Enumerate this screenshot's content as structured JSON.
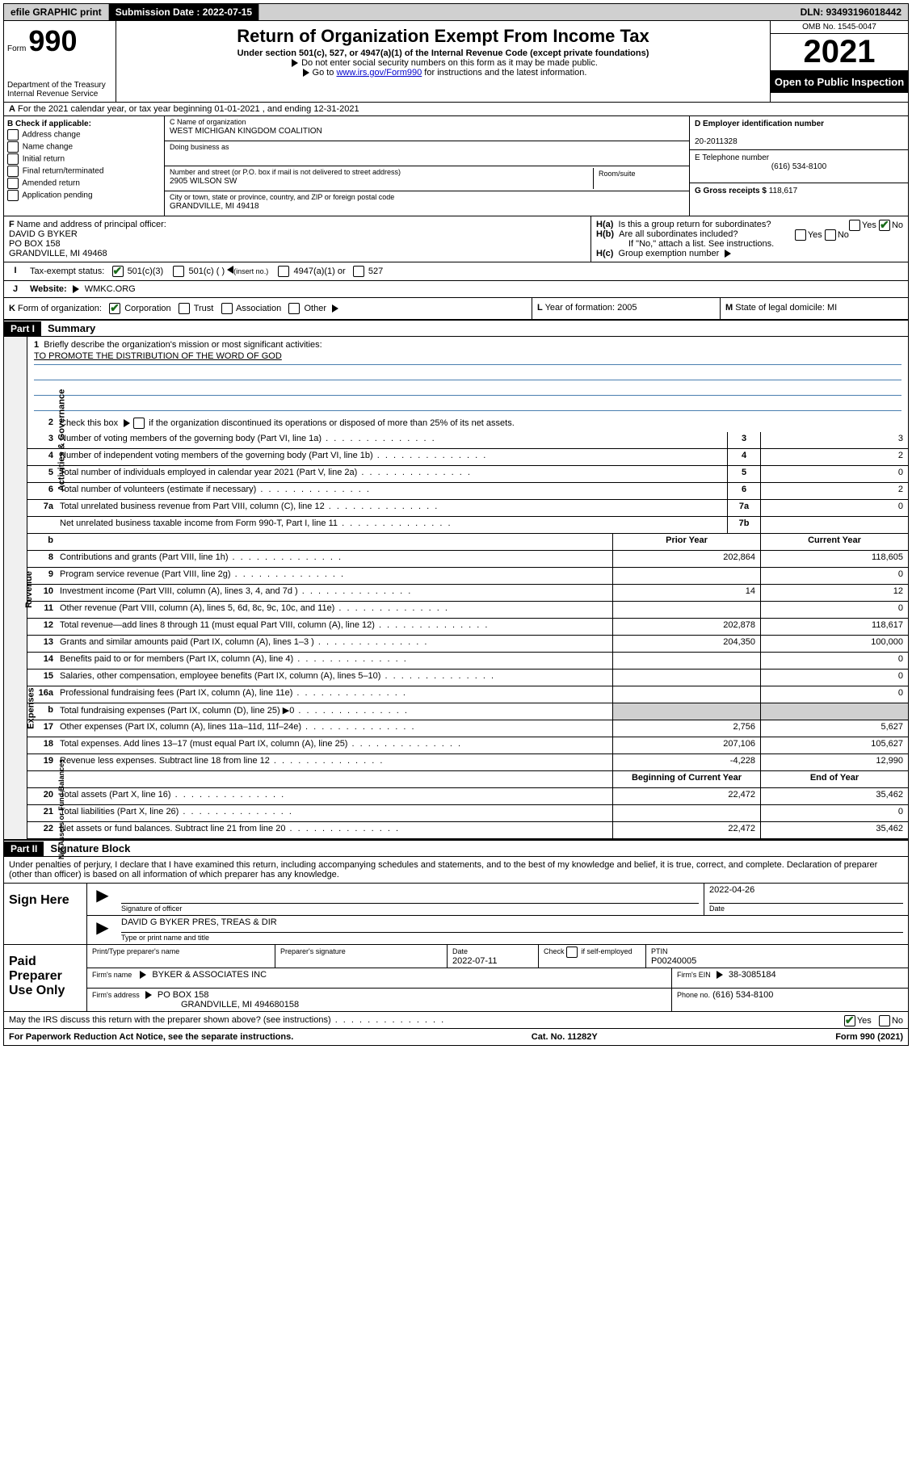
{
  "topbar": {
    "efile": "efile GRAPHIC print",
    "submission_label": "Submission Date : 2022-07-15",
    "dln": "DLN: 93493196018442"
  },
  "header": {
    "form_word": "Form",
    "form_num": "990",
    "dept": "Department of the Treasury",
    "irs": "Internal Revenue Service",
    "title": "Return of Organization Exempt From Income Tax",
    "sub": "Under section 501(c), 527, or 4947(a)(1) of the Internal Revenue Code (except private foundations)",
    "note1": "Do not enter social security numbers on this form as it may be made public.",
    "note2_pre": "Go to ",
    "note2_link": "www.irs.gov/Form990",
    "note2_post": " for instructions and the latest information.",
    "omb": "OMB No. 1545-0047",
    "year": "2021",
    "open": "Open to Public Inspection"
  },
  "section_a": {
    "label": "A",
    "text": "For the 2021 calendar year, or tax year beginning 01-01-2021",
    "ending": ", and ending 12-31-2021"
  },
  "section_b": {
    "label": "B Check if applicable:",
    "items": [
      "Address change",
      "Name change",
      "Initial return",
      "Final return/terminated",
      "Amended return",
      "Application pending"
    ]
  },
  "section_c": {
    "name_label": "C Name of organization",
    "name": "WEST MICHIGAN KINGDOM COALITION",
    "dba_label": "Doing business as",
    "dba": "",
    "street_label": "Number and street (or P.O. box if mail is not delivered to street address)",
    "street": "2905 WILSON SW",
    "room_label": "Room/suite",
    "city_label": "City or town, state or province, country, and ZIP or foreign postal code",
    "city": "GRANDVILLE, MI  49418"
  },
  "section_d": {
    "ein_label": "D Employer identification number",
    "ein": "20-2011328",
    "tel_label": "E Telephone number",
    "tel": "(616) 534-8100",
    "gross_label": "G Gross receipts $",
    "gross": "118,617"
  },
  "section_f": {
    "label": "F",
    "text": "Name and address of principal officer:",
    "name": "DAVID G BYKER",
    "addr1": "PO BOX 158",
    "addr2": "GRANDVILLE, MI  49468"
  },
  "section_h": {
    "a_label": "H(a)",
    "a_text": "Is this a group return for subordinates?",
    "b_label": "H(b)",
    "b_text": "Are all subordinates included?",
    "b_note": "If \"No,\" attach a list. See instructions.",
    "c_label": "H(c)",
    "c_text": "Group exemption number",
    "yes": "Yes",
    "no": "No"
  },
  "section_i": {
    "label": "I",
    "text": "Tax-exempt status:",
    "opt1": "501(c)(3)",
    "opt2": "501(c) (   )",
    "opt2_hint": "(insert no.)",
    "opt3": "4947(a)(1) or",
    "opt4": "527"
  },
  "section_j": {
    "label": "J",
    "text": "Website:",
    "value": "WMKC.ORG"
  },
  "section_k": {
    "label": "K",
    "text": "Form of organization:",
    "corp": "Corporation",
    "trust": "Trust",
    "assoc": "Association",
    "other": "Other"
  },
  "section_l": {
    "label": "L",
    "text": "Year of formation: 2005"
  },
  "section_m": {
    "label": "M",
    "text": "State of legal domicile: MI"
  },
  "part1": {
    "header": "Part I",
    "title": "Summary",
    "line1_label": "1",
    "line1_text": "Briefly describe the organization's mission or most significant activities:",
    "mission": "TO PROMOTE THE DISTRIBUTION OF THE WORD OF GOD",
    "line2_label": "2",
    "line2_text": "Check this box",
    "line2_post": "if the organization discontinued its operations or disposed of more than 25% of its net assets."
  },
  "sides": {
    "gov": "Activities & Governance",
    "rev": "Revenue",
    "exp": "Expenses",
    "net": "Net Assets or Fund Balances"
  },
  "gov_lines": [
    {
      "n": "3",
      "d": "Number of voting members of the governing body (Part VI, line 1a)",
      "box": "3",
      "v": "3"
    },
    {
      "n": "4",
      "d": "Number of independent voting members of the governing body (Part VI, line 1b)",
      "box": "4",
      "v": "2"
    },
    {
      "n": "5",
      "d": "Total number of individuals employed in calendar year 2021 (Part V, line 2a)",
      "box": "5",
      "v": "0"
    },
    {
      "n": "6",
      "d": "Total number of volunteers (estimate if necessary)",
      "box": "6",
      "v": "2"
    },
    {
      "n": "7a",
      "d": "Total unrelated business revenue from Part VIII, column (C), line 12",
      "box": "7a",
      "v": "0"
    },
    {
      "n": "",
      "d": "Net unrelated business taxable income from Form 990-T, Part I, line 11",
      "box": "7b",
      "v": ""
    }
  ],
  "two_col_head": {
    "prior": "Prior Year",
    "curr": "Current Year"
  },
  "rev_lines": [
    {
      "n": "8",
      "d": "Contributions and grants (Part VIII, line 1h)",
      "p": "202,864",
      "c": "118,605"
    },
    {
      "n": "9",
      "d": "Program service revenue (Part VIII, line 2g)",
      "p": "",
      "c": "0"
    },
    {
      "n": "10",
      "d": "Investment income (Part VIII, column (A), lines 3, 4, and 7d )",
      "p": "14",
      "c": "12"
    },
    {
      "n": "11",
      "d": "Other revenue (Part VIII, column (A), lines 5, 6d, 8c, 9c, 10c, and 11e)",
      "p": "",
      "c": "0"
    },
    {
      "n": "12",
      "d": "Total revenue—add lines 8 through 11 (must equal Part VIII, column (A), line 12)",
      "p": "202,878",
      "c": "118,617"
    }
  ],
  "exp_lines": [
    {
      "n": "13",
      "d": "Grants and similar amounts paid (Part IX, column (A), lines 1–3 )",
      "p": "204,350",
      "c": "100,000"
    },
    {
      "n": "14",
      "d": "Benefits paid to or for members (Part IX, column (A), line 4)",
      "p": "",
      "c": "0"
    },
    {
      "n": "15",
      "d": "Salaries, other compensation, employee benefits (Part IX, column (A), lines 5–10)",
      "p": "",
      "c": "0"
    },
    {
      "n": "16a",
      "d": "Professional fundraising fees (Part IX, column (A), line 11e)",
      "p": "",
      "c": "0"
    },
    {
      "n": "b",
      "d": "Total fundraising expenses (Part IX, column (D), line 25) ▶0",
      "p": "grey",
      "c": "grey"
    },
    {
      "n": "17",
      "d": "Other expenses (Part IX, column (A), lines 11a–11d, 11f–24e)",
      "p": "2,756",
      "c": "5,627"
    },
    {
      "n": "18",
      "d": "Total expenses. Add lines 13–17 (must equal Part IX, column (A), line 25)",
      "p": "207,106",
      "c": "105,627"
    },
    {
      "n": "19",
      "d": "Revenue less expenses. Subtract line 18 from line 12",
      "p": "-4,228",
      "c": "12,990"
    }
  ],
  "net_head": {
    "beg": "Beginning of Current Year",
    "end": "End of Year"
  },
  "net_lines": [
    {
      "n": "20",
      "d": "Total assets (Part X, line 16)",
      "p": "22,472",
      "c": "35,462"
    },
    {
      "n": "21",
      "d": "Total liabilities (Part X, line 26)",
      "p": "",
      "c": "0"
    },
    {
      "n": "22",
      "d": "Net assets or fund balances. Subtract line 21 from line 20",
      "p": "22,472",
      "c": "35,462"
    }
  ],
  "part2": {
    "header": "Part II",
    "title": "Signature Block",
    "penalties": "Under penalties of perjury, I declare that I have examined this return, including accompanying schedules and statements, and to the best of my knowledge and belief, it is true, correct, and complete. Declaration of preparer (other than officer) is based on all information of which preparer has any knowledge."
  },
  "sign": {
    "label": "Sign Here",
    "sig_officer": "Signature of officer",
    "date_label": "Date",
    "date": "2022-04-26",
    "name": "DAVID G BYKER  PRES, TREAS & DIR",
    "name_label": "Type or print name and title"
  },
  "prep": {
    "label": "Paid Preparer Use Only",
    "h1": "Print/Type preparer's name",
    "h2": "Preparer's signature",
    "h3_label": "Date",
    "h3": "2022-07-11",
    "h4_pre": "Check",
    "h4_post": "if self-employed",
    "h5_label": "PTIN",
    "h5": "P00240005",
    "firm_name_lbl": "Firm's name",
    "firm_name": "BYKER & ASSOCIATES INC",
    "firm_ein_lbl": "Firm's EIN",
    "firm_ein": "38-3085184",
    "firm_addr_lbl": "Firm's address",
    "firm_addr1": "PO BOX 158",
    "firm_addr2": "GRANDVILLE, MI  494680158",
    "phone_lbl": "Phone no.",
    "phone": "(616) 534-8100"
  },
  "discuss": {
    "text": "May the IRS discuss this return with the preparer shown above? (see instructions)",
    "yes": "Yes",
    "no": "No"
  },
  "footer": {
    "left": "For Paperwork Reduction Act Notice, see the separate instructions.",
    "mid": "Cat. No. 11282Y",
    "right_pre": "Form ",
    "right_bold": "990",
    "right_post": " (2021)"
  }
}
